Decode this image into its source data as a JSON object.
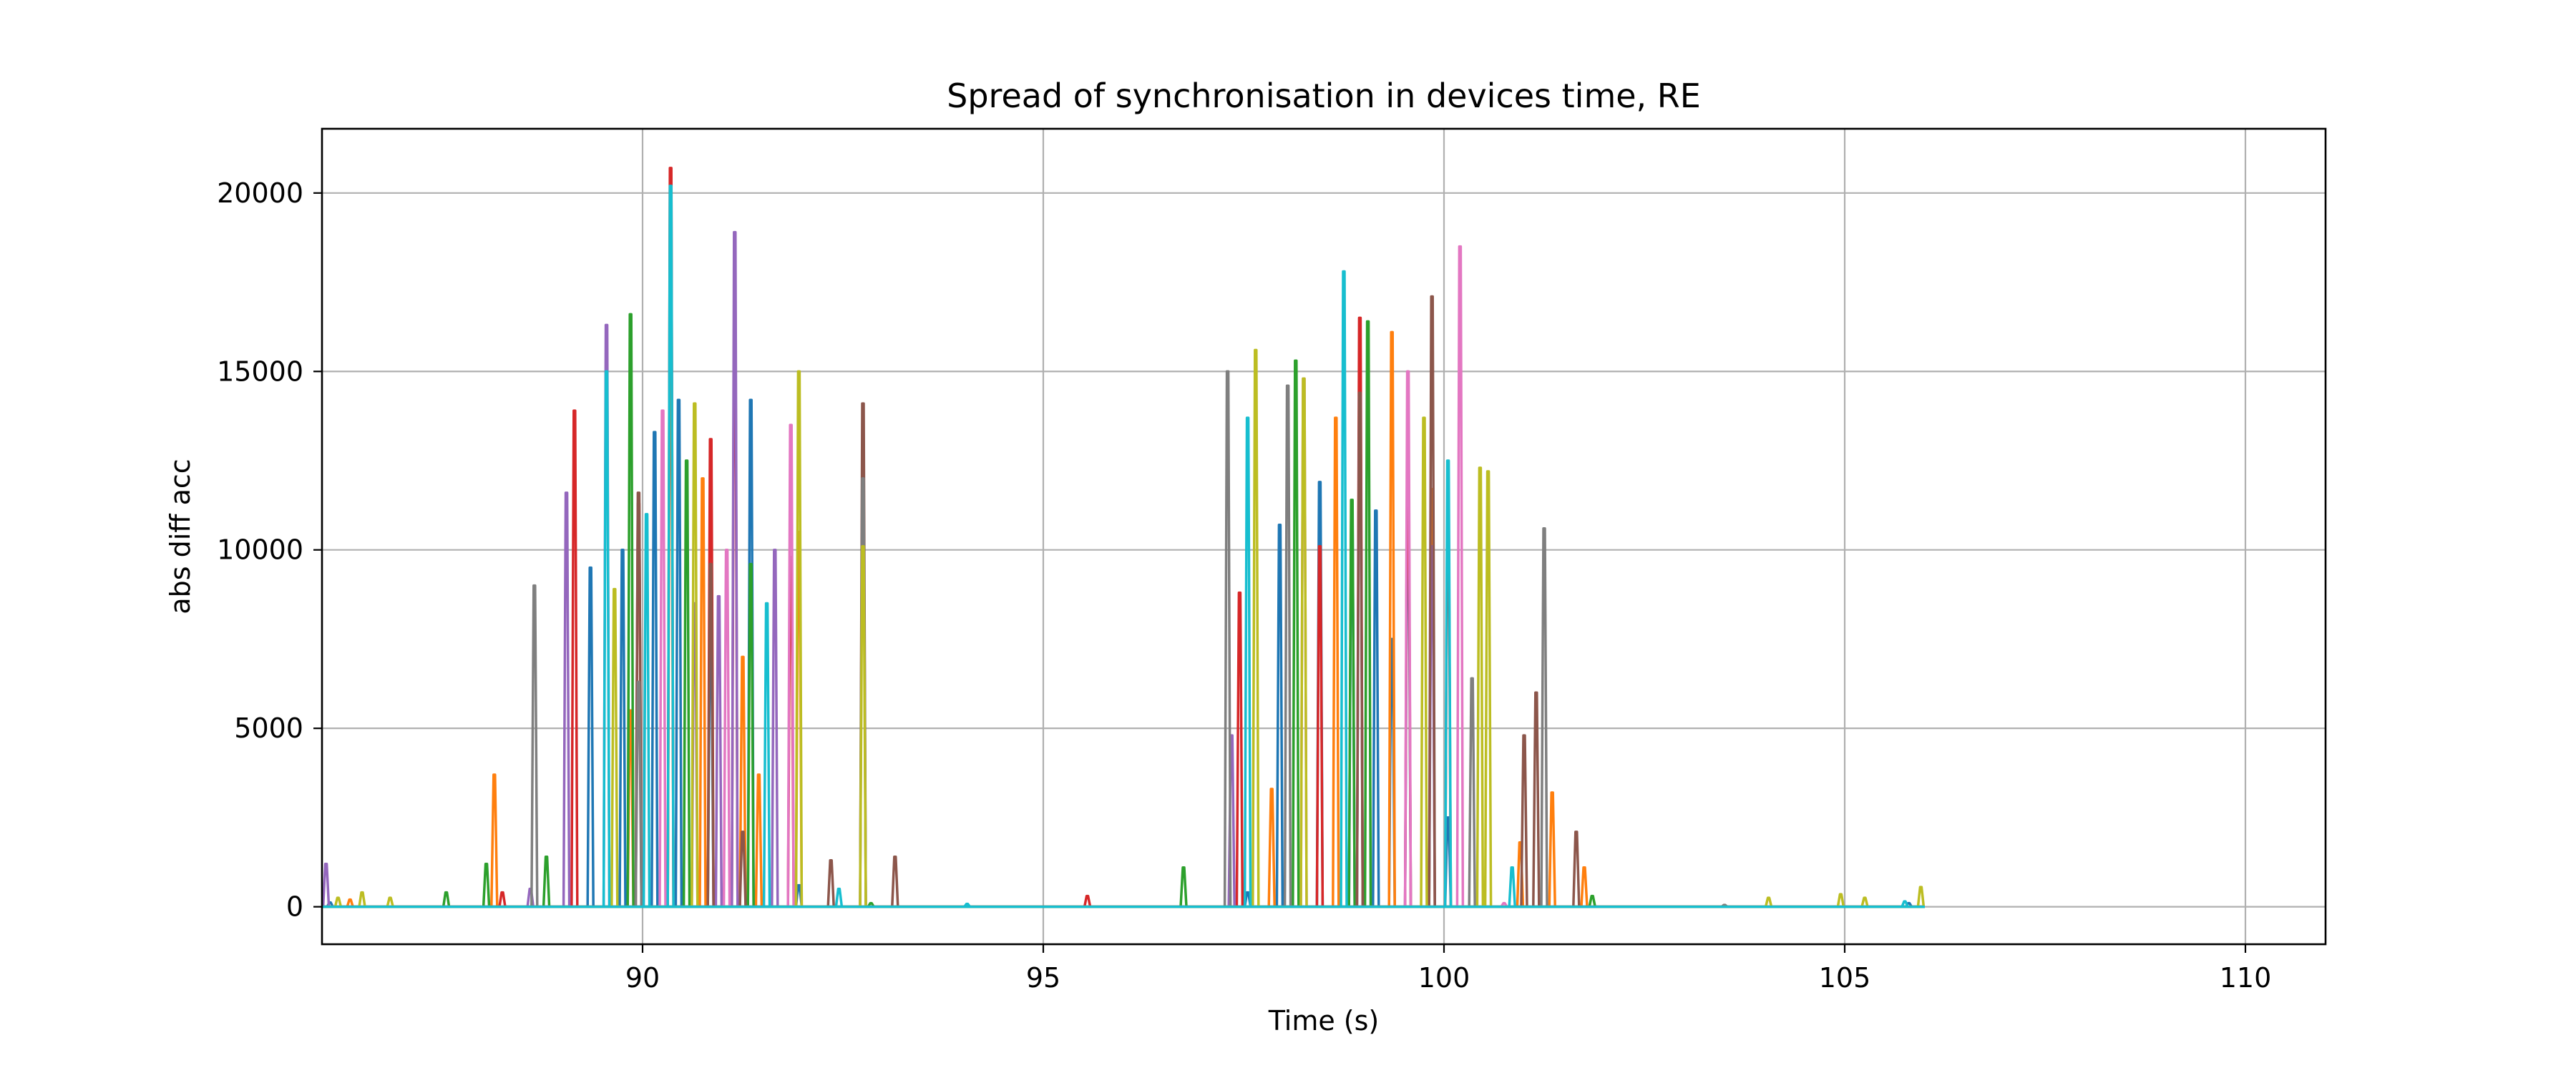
{
  "chart_data": {
    "type": "line",
    "title": "Spread of synchronisation in devices time, RE",
    "xlabel": "Time (s)",
    "ylabel": "abs diff acc",
    "xlim": [
      86.0,
      111.0
    ],
    "ylim": [
      -1050,
      21800
    ],
    "xticks": [
      90,
      95,
      100,
      105,
      110
    ],
    "yticks": [
      0,
      5000,
      10000,
      15000,
      20000
    ],
    "xtick_labels": [
      "90",
      "95",
      "100",
      "105",
      "110"
    ],
    "ytick_labels": [
      "0",
      "5000",
      "10000",
      "15000",
      "20000"
    ],
    "grid": true,
    "legend": "none",
    "baseline_extent": [
      86.0,
      106.0
    ],
    "series": [
      {
        "color": "#1f77b4",
        "values": [
          [
            86.1,
            120
          ],
          [
            89.35,
            9500
          ],
          [
            89.75,
            10000
          ],
          [
            90.15,
            13300
          ],
          [
            90.45,
            14200
          ],
          [
            90.85,
            7800
          ],
          [
            91.35,
            14200
          ],
          [
            91.95,
            600
          ],
          [
            97.55,
            400
          ],
          [
            97.95,
            10700
          ],
          [
            98.45,
            11900
          ],
          [
            98.85,
            10800
          ],
          [
            99.15,
            11100
          ],
          [
            99.35,
            7500
          ],
          [
            99.55,
            11300
          ],
          [
            100.05,
            2500
          ],
          [
            105.8,
            100
          ]
        ]
      },
      {
        "color": "#ff7f0e",
        "values": [
          [
            86.35,
            200
          ],
          [
            88.15,
            3700
          ],
          [
            89.85,
            5500
          ],
          [
            90.35,
            16300
          ],
          [
            90.75,
            12000
          ],
          [
            91.25,
            7000
          ],
          [
            91.45,
            3700
          ],
          [
            91.95,
            10500
          ],
          [
            97.85,
            3300
          ],
          [
            98.65,
            13700
          ],
          [
            99.35,
            16100
          ],
          [
            99.85,
            11700
          ],
          [
            100.95,
            1800
          ],
          [
            101.35,
            3200
          ],
          [
            101.75,
            1100
          ]
        ]
      },
      {
        "color": "#2ca02c",
        "values": [
          [
            87.55,
            400
          ],
          [
            88.05,
            1200
          ],
          [
            88.8,
            1400
          ],
          [
            89.85,
            16600
          ],
          [
            90.55,
            12500
          ],
          [
            91.35,
            9600
          ],
          [
            92.85,
            100
          ],
          [
            96.75,
            1100
          ],
          [
            98.15,
            15300
          ],
          [
            98.85,
            11400
          ],
          [
            99.05,
            16400
          ],
          [
            101.85,
            300
          ]
        ]
      },
      {
        "color": "#d62728",
        "values": [
          [
            88.25,
            400
          ],
          [
            89.15,
            13900
          ],
          [
            89.95,
            11300
          ],
          [
            90.35,
            20700
          ],
          [
            90.85,
            13100
          ],
          [
            91.15,
            16700
          ],
          [
            91.85,
            9800
          ],
          [
            95.55,
            300
          ],
          [
            97.45,
            8800
          ],
          [
            98.45,
            10100
          ],
          [
            98.95,
            16500
          ],
          [
            99.55,
            12800
          ],
          [
            100.05,
            11100
          ]
        ]
      },
      {
        "color": "#9467bd",
        "values": [
          [
            86.05,
            1200
          ],
          [
            88.6,
            500
          ],
          [
            89.05,
            11600
          ],
          [
            89.55,
            16300
          ],
          [
            90.65,
            8500
          ],
          [
            90.95,
            8700
          ],
          [
            91.15,
            18900
          ],
          [
            91.65,
            10000
          ],
          [
            97.35,
            4800
          ],
          [
            98.95,
            14300
          ],
          [
            99.85,
            10100
          ]
        ]
      },
      {
        "color": "#8c564b",
        "values": [
          [
            89.95,
            11600
          ],
          [
            90.85,
            9600
          ],
          [
            91.25,
            2100
          ],
          [
            92.35,
            1300
          ],
          [
            92.75,
            14100
          ],
          [
            93.15,
            1400
          ],
          [
            98.95,
            14400
          ],
          [
            99.85,
            17100
          ],
          [
            101.0,
            4800
          ],
          [
            101.15,
            6000
          ],
          [
            101.65,
            2100
          ]
        ]
      },
      {
        "color": "#e377c2",
        "values": [
          [
            90.25,
            13900
          ],
          [
            91.05,
            10000
          ],
          [
            91.85,
            13500
          ],
          [
            98.25,
            14800
          ],
          [
            99.55,
            15000
          ],
          [
            100.2,
            18500
          ],
          [
            100.75,
            100
          ]
        ]
      },
      {
        "color": "#7f7f7f",
        "values": [
          [
            88.65,
            9000
          ],
          [
            89.95,
            6300
          ],
          [
            92.75,
            12000
          ],
          [
            97.3,
            15000
          ],
          [
            98.05,
            14600
          ],
          [
            100.35,
            6400
          ],
          [
            101.25,
            10600
          ],
          [
            103.5,
            50
          ]
        ]
      },
      {
        "color": "#bcbd22",
        "values": [
          [
            86.2,
            250
          ],
          [
            86.5,
            400
          ],
          [
            86.85,
            250
          ],
          [
            89.65,
            8900
          ],
          [
            90.65,
            14100
          ],
          [
            91.95,
            15000
          ],
          [
            92.75,
            10100
          ],
          [
            97.65,
            15600
          ],
          [
            98.25,
            14800
          ],
          [
            99.75,
            13700
          ],
          [
            100.45,
            12300
          ],
          [
            100.55,
            12200
          ],
          [
            104.05,
            250
          ],
          [
            104.95,
            350
          ],
          [
            105.25,
            250
          ],
          [
            105.95,
            550
          ]
        ]
      },
      {
        "color": "#17becf",
        "values": [
          [
            89.55,
            15000
          ],
          [
            90.05,
            11000
          ],
          [
            90.35,
            20200
          ],
          [
            91.55,
            8500
          ],
          [
            92.45,
            500
          ],
          [
            94.05,
            80
          ],
          [
            97.55,
            13700
          ],
          [
            98.75,
            17800
          ],
          [
            100.05,
            12500
          ],
          [
            100.85,
            1100
          ],
          [
            105.75,
            150
          ]
        ]
      }
    ]
  }
}
